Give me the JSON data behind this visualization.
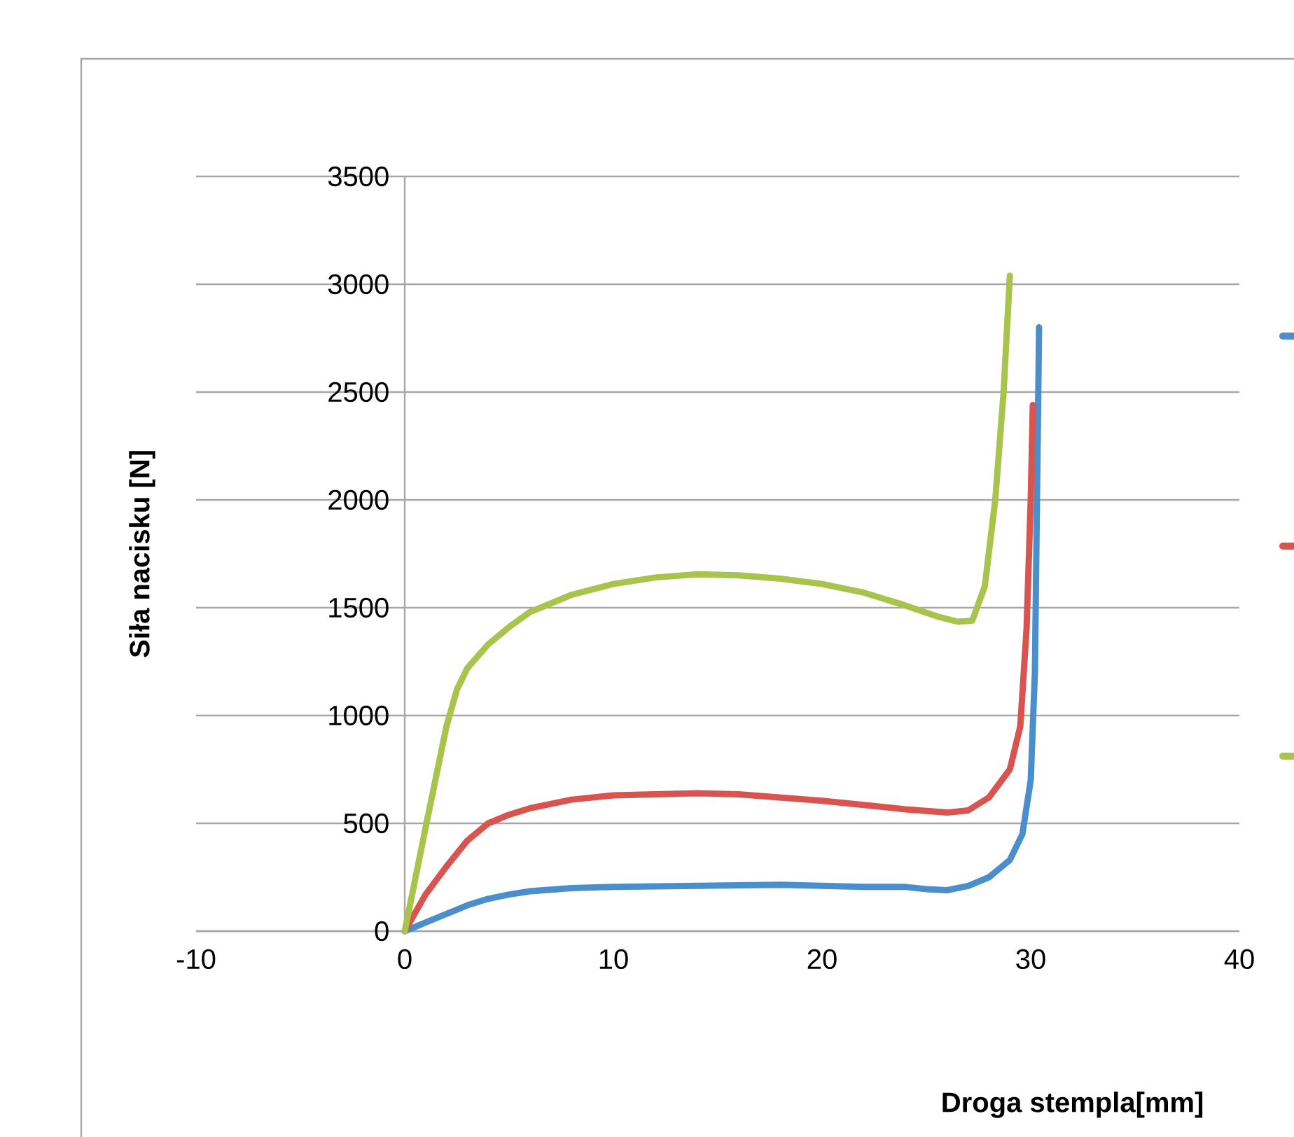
{
  "chart_data": {
    "type": "line",
    "xlabel": "Droga stempla[mm]",
    "ylabel": "Siła nacisku [N]",
    "xlim": [
      -10,
      40
    ],
    "ylim": [
      0,
      3500
    ],
    "xticks": [
      -10,
      0,
      10,
      20,
      30,
      40
    ],
    "yticks": [
      0,
      500,
      1000,
      1500,
      2000,
      2500,
      3000,
      3500
    ],
    "grid": "y",
    "series": [
      {
        "color": "#4a8fcc",
        "x": [
          0,
          1,
          2,
          3,
          4,
          5,
          6,
          8,
          10,
          14,
          18,
          22,
          24,
          25,
          26,
          27,
          28,
          29,
          29.6,
          30,
          30.2,
          30.3,
          30.4
        ],
        "values": [
          0,
          40,
          80,
          120,
          150,
          170,
          185,
          200,
          205,
          210,
          215,
          205,
          205,
          195,
          190,
          210,
          250,
          330,
          450,
          700,
          1200,
          2000,
          2800
        ]
      },
      {
        "color": "#d9534f",
        "x": [
          0,
          1,
          2,
          3,
          4,
          5,
          6,
          8,
          10,
          12,
          14,
          16,
          18,
          20,
          22,
          24,
          26,
          27,
          28,
          29,
          29.5,
          29.8,
          30,
          30.1
        ],
        "values": [
          0,
          170,
          300,
          420,
          500,
          540,
          570,
          610,
          630,
          635,
          640,
          635,
          620,
          605,
          585,
          565,
          550,
          560,
          620,
          750,
          950,
          1400,
          2000,
          2440
        ]
      },
      {
        "color": "#a9c44c",
        "x": [
          0,
          1,
          2,
          2.5,
          3,
          4,
          5,
          6,
          8,
          10,
          12,
          14,
          16,
          18,
          20,
          22,
          24,
          25.5,
          26.5,
          27.2,
          27.8,
          28.3,
          28.7,
          29
        ],
        "values": [
          0,
          480,
          950,
          1120,
          1220,
          1330,
          1410,
          1480,
          1560,
          1610,
          1640,
          1655,
          1650,
          1635,
          1610,
          1570,
          1510,
          1460,
          1435,
          1440,
          1600,
          2000,
          2500,
          3040
        ]
      }
    ]
  }
}
